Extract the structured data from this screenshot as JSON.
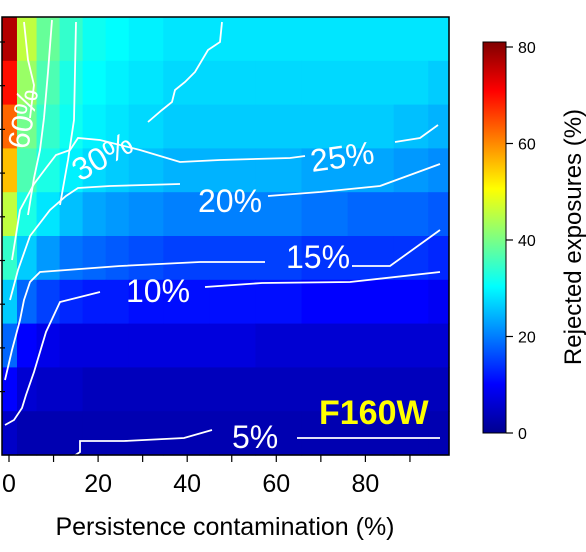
{
  "chart_data": {
    "type": "heatmap",
    "title": "",
    "panel_label": "F160W",
    "panel_label_color": "#FFFF00",
    "xlabel": "Persistence contamination (%)",
    "ylabel": "",
    "xlim": [
      0,
      97
    ],
    "x_ticks": [
      0,
      20,
      40,
      60,
      80
    ],
    "x_tick_labels": [
      "0",
      "20",
      "40",
      "60",
      "80"
    ],
    "x_minor_ticks": [
      10,
      30,
      50,
      70,
      90
    ],
    "y_ticks_count": 9,
    "colorbar": {
      "label": "Rejected exposures (%)",
      "range": [
        0,
        80
      ],
      "ticks": [
        0,
        20,
        40,
        60,
        80
      ],
      "tick_labels": [
        "0",
        "20",
        "40",
        "60",
        "80"
      ],
      "colormap": [
        "#00008F",
        "#0000FF",
        "#0080FF",
        "#00FFFF",
        "#80FF80",
        "#FFFF00",
        "#FF8000",
        "#FF0000",
        "#800000"
      ]
    },
    "x_centers": [
      1.5,
      5,
      10,
      15,
      20,
      25,
      30,
      40,
      50,
      60,
      70,
      80,
      90,
      95
    ],
    "rows": [
      [
        76,
        45,
        38,
        34,
        31,
        30,
        29,
        28,
        28,
        28,
        28,
        28,
        28,
        28
      ],
      [
        69,
        42,
        36,
        32,
        30,
        29,
        28,
        27,
        27,
        27,
        27,
        27,
        27,
        26
      ],
      [
        62,
        39,
        34,
        31,
        29,
        28,
        27,
        26,
        26,
        26,
        26,
        26,
        25,
        24
      ],
      [
        55,
        36,
        32,
        29,
        27,
        26,
        25,
        24,
        24,
        24,
        23,
        23,
        22,
        21
      ],
      [
        45,
        32,
        28,
        25,
        23,
        22,
        21,
        20,
        20,
        20,
        19,
        18,
        18,
        17
      ],
      [
        34,
        26,
        22,
        19,
        18,
        17,
        16,
        15,
        15,
        15,
        14,
        14,
        14,
        13
      ],
      [
        26,
        18,
        15,
        13,
        12,
        12,
        11,
        11,
        11,
        11,
        10,
        10,
        10,
        9
      ],
      [
        18,
        10,
        8,
        7,
        7,
        7,
        7,
        7,
        7,
        6,
        6,
        6,
        6,
        6
      ],
      [
        10,
        6,
        5,
        5,
        4,
        4,
        4,
        4,
        4,
        4,
        4,
        4,
        4,
        4
      ],
      [
        5,
        3,
        3,
        3,
        3,
        3,
        3,
        3,
        3,
        3,
        3,
        3,
        3,
        3
      ]
    ],
    "contour_labels": [
      "5%",
      "10%",
      "15%",
      "20%",
      "25%",
      "30%",
      "60%"
    ]
  }
}
